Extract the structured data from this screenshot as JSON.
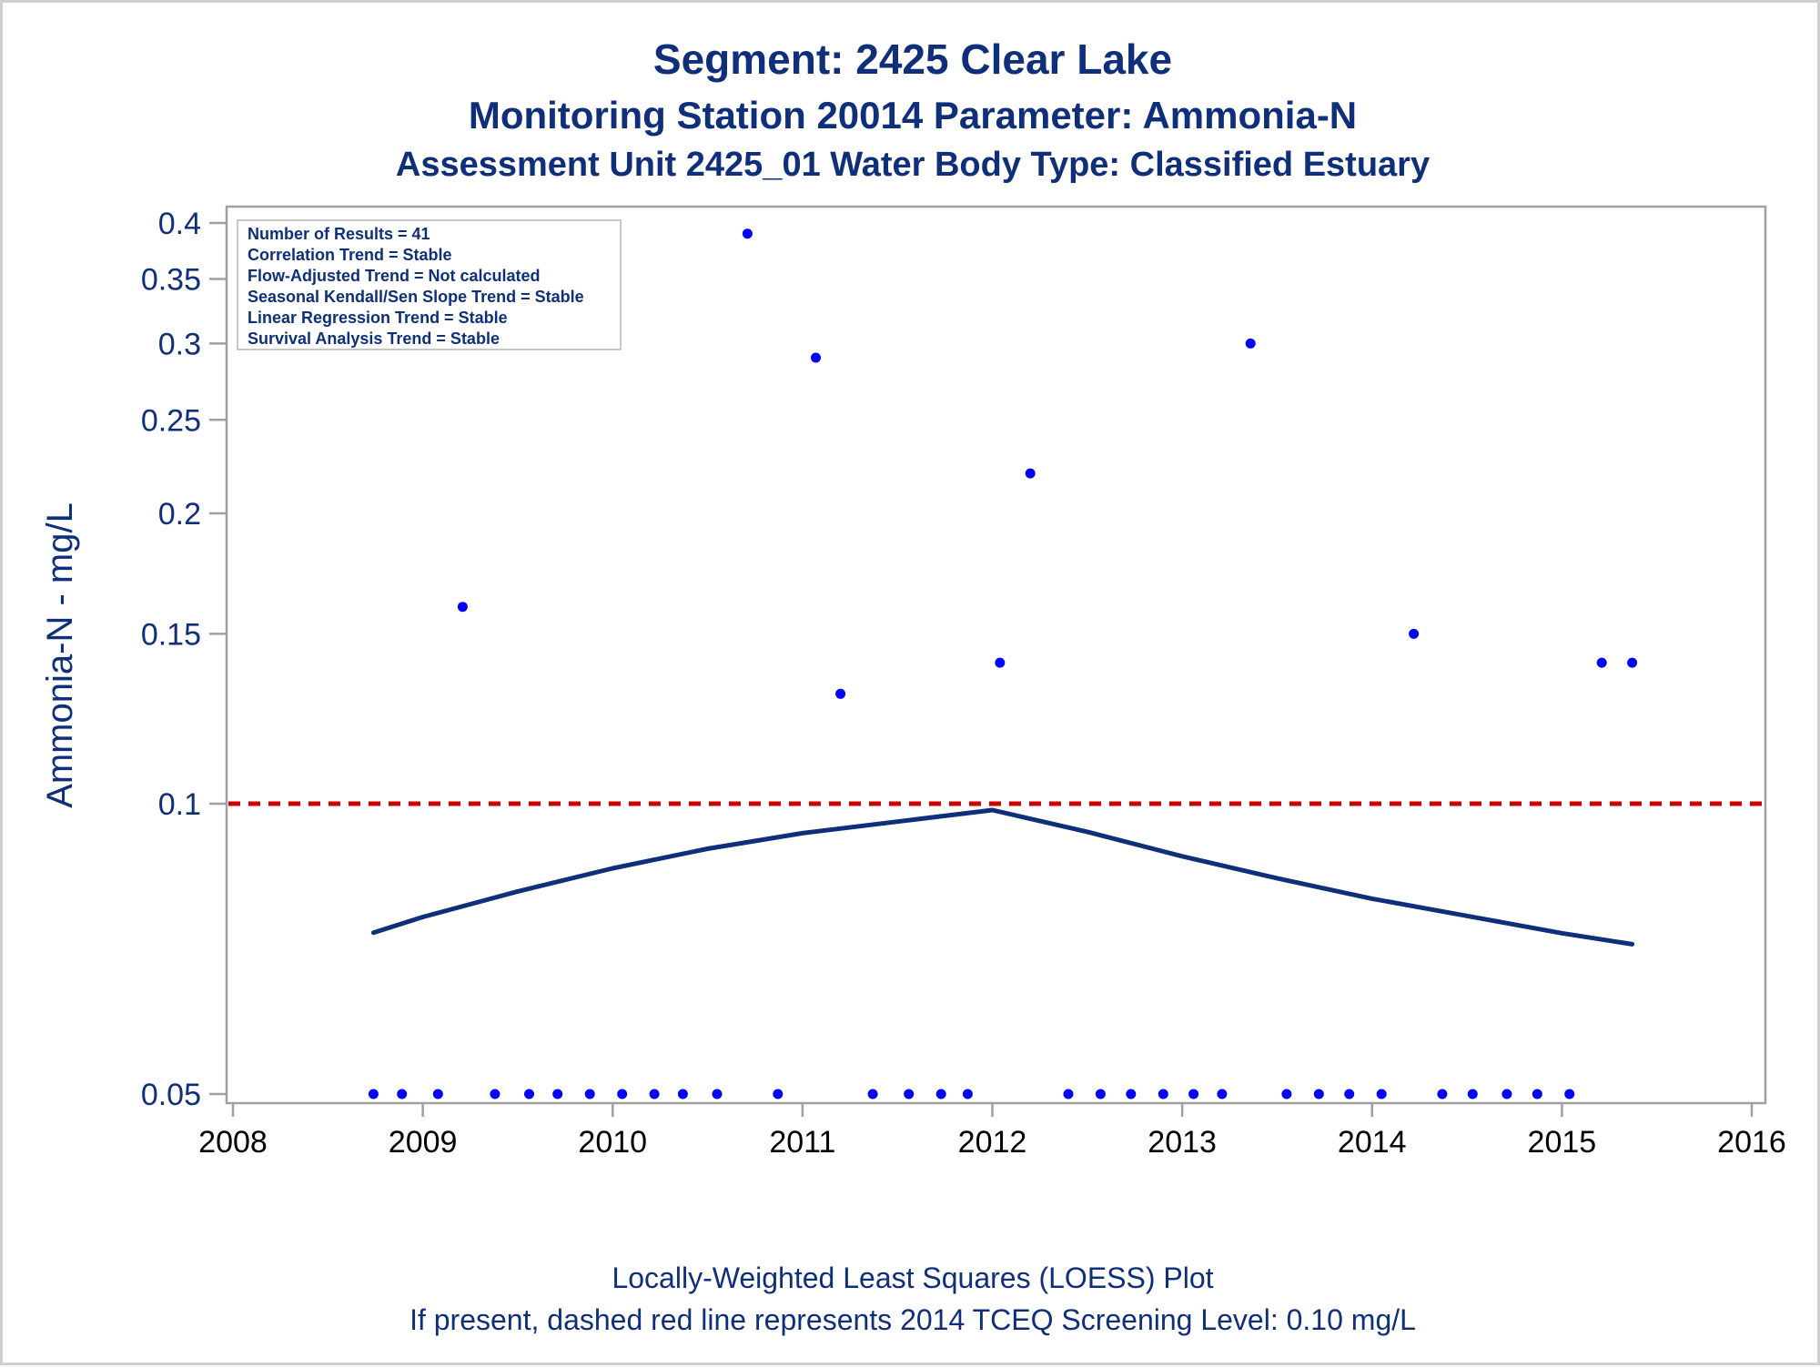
{
  "titles": {
    "line1": "Segment: 2425  Clear Lake",
    "line2": "Monitoring Station 20014 Parameter: Ammonia-N",
    "line3": "Assessment Unit 2425_01   Water Body Type: Classified Estuary"
  },
  "stats_box": [
    "Number of Results = 41",
    "Correlation Trend = Stable",
    "Flow-Adjusted Trend = Not calculated",
    "Seasonal Kendall/Sen Slope Trend = Stable",
    "Linear Regression Trend = Stable",
    "Survival Analysis Trend = Stable"
  ],
  "footnotes": {
    "line1": "Locally-Weighted Least Squares (LOESS) Plot",
    "line2": "If present, dashed red line represents 2014 TCEQ Screening Level: 0.10 mg/L"
  },
  "colors": {
    "title": "#0f2f7a",
    "points": "#0000ff",
    "loess": "#0f2f7a",
    "screening_line": "#cc0000",
    "axis": "#a0a0a0"
  },
  "chart_data": {
    "type": "scatter",
    "xlabel": "",
    "ylabel": "Ammonia-N - mg/L",
    "x_scale": "linear",
    "y_scale": "log",
    "xlim": [
      2008,
      2016
    ],
    "ylim": [
      0.048,
      0.41
    ],
    "x_ticks": [
      2008,
      2009,
      2010,
      2011,
      2012,
      2013,
      2014,
      2015,
      2016
    ],
    "x_tick_labels": [
      "2008",
      "2009",
      "2010",
      "2011",
      "2012",
      "2013",
      "2014",
      "2015",
      "2016"
    ],
    "y_ticks": [
      0.05,
      0.1,
      0.15,
      0.2,
      0.25,
      0.3,
      0.35,
      0.4
    ],
    "y_tick_labels": [
      "0.05",
      "0.1",
      "0.15",
      "0.2",
      "0.25",
      "0.3",
      "0.35",
      "0.4"
    ],
    "screening_level": 0.1,
    "points": [
      {
        "x": 2008.74,
        "y": 0.05
      },
      {
        "x": 2008.89,
        "y": 0.05
      },
      {
        "x": 2009.08,
        "y": 0.05
      },
      {
        "x": 2009.21,
        "y": 0.16
      },
      {
        "x": 2009.38,
        "y": 0.05
      },
      {
        "x": 2009.56,
        "y": 0.05
      },
      {
        "x": 2009.71,
        "y": 0.05
      },
      {
        "x": 2009.88,
        "y": 0.05
      },
      {
        "x": 2010.05,
        "y": 0.05
      },
      {
        "x": 2010.22,
        "y": 0.05
      },
      {
        "x": 2010.37,
        "y": 0.05
      },
      {
        "x": 2010.55,
        "y": 0.05
      },
      {
        "x": 2010.71,
        "y": 0.39
      },
      {
        "x": 2010.87,
        "y": 0.05
      },
      {
        "x": 2011.07,
        "y": 0.29
      },
      {
        "x": 2011.2,
        "y": 0.13
      },
      {
        "x": 2011.37,
        "y": 0.05
      },
      {
        "x": 2011.56,
        "y": 0.05
      },
      {
        "x": 2011.73,
        "y": 0.05
      },
      {
        "x": 2011.87,
        "y": 0.05
      },
      {
        "x": 2012.04,
        "y": 0.14
      },
      {
        "x": 2012.2,
        "y": 0.22
      },
      {
        "x": 2012.4,
        "y": 0.05
      },
      {
        "x": 2012.57,
        "y": 0.05
      },
      {
        "x": 2012.73,
        "y": 0.05
      },
      {
        "x": 2012.9,
        "y": 0.05
      },
      {
        "x": 2013.06,
        "y": 0.05
      },
      {
        "x": 2013.21,
        "y": 0.05
      },
      {
        "x": 2013.36,
        "y": 0.3
      },
      {
        "x": 2013.55,
        "y": 0.05
      },
      {
        "x": 2013.72,
        "y": 0.05
      },
      {
        "x": 2013.88,
        "y": 0.05
      },
      {
        "x": 2014.05,
        "y": 0.05
      },
      {
        "x": 2014.22,
        "y": 0.15
      },
      {
        "x": 2014.37,
        "y": 0.05
      },
      {
        "x": 2014.53,
        "y": 0.05
      },
      {
        "x": 2014.71,
        "y": 0.05
      },
      {
        "x": 2014.87,
        "y": 0.05
      },
      {
        "x": 2015.04,
        "y": 0.05
      },
      {
        "x": 2015.21,
        "y": 0.14
      },
      {
        "x": 2015.37,
        "y": 0.14
      }
    ],
    "loess_curve": [
      {
        "x": 2008.74,
        "y": 0.0735
      },
      {
        "x": 2009.0,
        "y": 0.0763
      },
      {
        "x": 2009.5,
        "y": 0.0811
      },
      {
        "x": 2010.0,
        "y": 0.0857
      },
      {
        "x": 2010.5,
        "y": 0.0898
      },
      {
        "x": 2011.0,
        "y": 0.0932
      },
      {
        "x": 2011.5,
        "y": 0.0958
      },
      {
        "x": 2012.0,
        "y": 0.0985
      },
      {
        "x": 2012.5,
        "y": 0.0935
      },
      {
        "x": 2013.0,
        "y": 0.0882
      },
      {
        "x": 2013.5,
        "y": 0.0837
      },
      {
        "x": 2014.0,
        "y": 0.0797
      },
      {
        "x": 2014.5,
        "y": 0.0765
      },
      {
        "x": 2015.0,
        "y": 0.0734
      },
      {
        "x": 2015.37,
        "y": 0.0715
      }
    ]
  }
}
